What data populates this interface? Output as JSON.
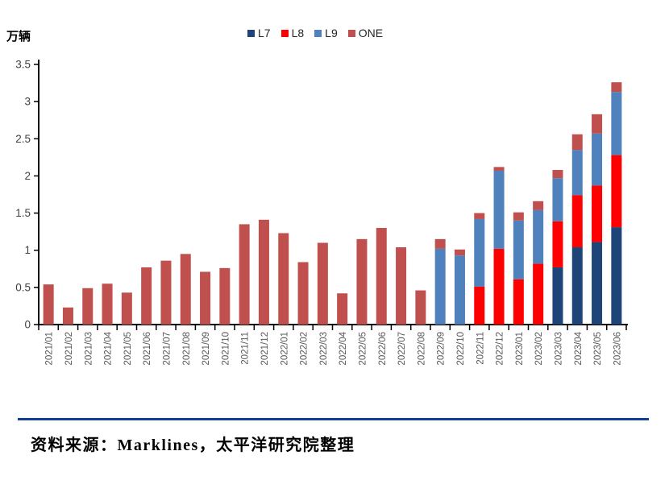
{
  "chart": {
    "unit_label": "万辆"
  },
  "chart_data": {
    "type": "bar",
    "stacked": true,
    "title": "",
    "xlabel": "",
    "ylabel": "万辆",
    "ylim": [
      0,
      3.5
    ],
    "ytick_step": 0.5,
    "ytick_labels": [
      "0",
      "0.5",
      "1",
      "1.5",
      "2",
      "2.5",
      "3",
      "3.5"
    ],
    "grid": false,
    "legend_position": "top-center",
    "categories": [
      "2021/01",
      "2021/02",
      "2021/03",
      "2021/04",
      "2021/05",
      "2021/06",
      "2021/07",
      "2021/08",
      "2021/09",
      "2021/10",
      "2021/11",
      "2021/12",
      "2022/01",
      "2022/02",
      "2022/03",
      "2022/04",
      "2022/05",
      "2022/06",
      "2022/07",
      "2022/08",
      "2022/09",
      "2022/10",
      "2022/11",
      "2022/12",
      "2023/01",
      "2023/02",
      "2023/03",
      "2023/04",
      "2023/05",
      "2023/06"
    ],
    "series": [
      {
        "name": "L7",
        "color": "#1F4477",
        "values": [
          0,
          0,
          0,
          0,
          0,
          0,
          0,
          0,
          0,
          0,
          0,
          0,
          0,
          0,
          0,
          0,
          0,
          0,
          0,
          0,
          0,
          0,
          0,
          0,
          0,
          0,
          0.77,
          1.04,
          1.11,
          1.31
        ]
      },
      {
        "name": "L8",
        "color": "#FF0000",
        "values": [
          0,
          0,
          0,
          0,
          0,
          0,
          0,
          0,
          0,
          0,
          0,
          0,
          0,
          0,
          0,
          0,
          0,
          0,
          0,
          0,
          0,
          0,
          0.51,
          1.02,
          0.61,
          0.82,
          0.62,
          0.7,
          0.76,
          0.97
        ]
      },
      {
        "name": "L9",
        "color": "#4F81BD",
        "values": [
          0,
          0,
          0,
          0,
          0,
          0,
          0,
          0,
          0,
          0,
          0,
          0,
          0,
          0,
          0,
          0,
          0,
          0,
          0,
          0,
          1.02,
          0.93,
          0.91,
          1.05,
          0.79,
          0.72,
          0.58,
          0.61,
          0.7,
          0.85
        ]
      },
      {
        "name": "ONE",
        "color": "#C0504D",
        "values": [
          0.54,
          0.23,
          0.49,
          0.55,
          0.43,
          0.77,
          0.86,
          0.95,
          0.71,
          0.76,
          1.35,
          1.41,
          1.23,
          0.84,
          1.1,
          0.42,
          1.15,
          1.3,
          1.04,
          0.46,
          0.13,
          0.08,
          0.08,
          0.05,
          0.11,
          0.12,
          0.11,
          0.21,
          0.26,
          0.13
        ]
      }
    ]
  },
  "footer": {
    "source_text": "资料来源：Marklines，太平洋研究院整理"
  },
  "colors": {
    "axis": "#000000",
    "y_tick_label": "#404040",
    "x_tick_label": "#595959",
    "footer_rule": "#10408F"
  }
}
